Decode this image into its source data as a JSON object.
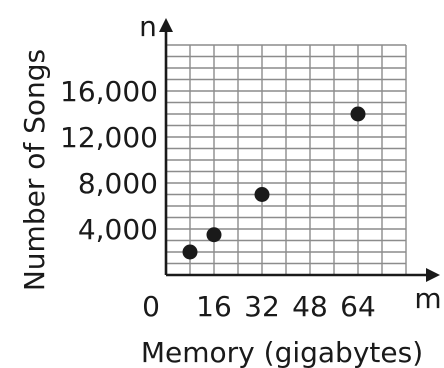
{
  "chart_data": {
    "type": "scatter",
    "title": "",
    "xlabel": "Memory (gigabytes)",
    "ylabel": "Number of Songs",
    "x_var": "m",
    "y_var": "n",
    "x_origin_label": "0",
    "xlim": [
      0,
      80
    ],
    "ylim": [
      0,
      20000
    ],
    "grid": true,
    "x_grid_step": 8,
    "y_grid_step": 1000,
    "x_ticks": [
      16,
      32,
      48,
      64
    ],
    "x_tick_labels": [
      "16",
      "32",
      "48",
      "64"
    ],
    "y_ticks": [
      4000,
      8000,
      12000,
      16000
    ],
    "y_tick_labels": [
      "4,000",
      "8,000",
      "12,000",
      "16,000"
    ],
    "points": [
      {
        "x": 8,
        "y": 2000
      },
      {
        "x": 16,
        "y": 3500
      },
      {
        "x": 32,
        "y": 7000
      },
      {
        "x": 64,
        "y": 14000
      }
    ],
    "colors": {
      "grid": "#8c8c8c",
      "axis": "#1a1a1a",
      "point": "#1a1a1a"
    }
  }
}
